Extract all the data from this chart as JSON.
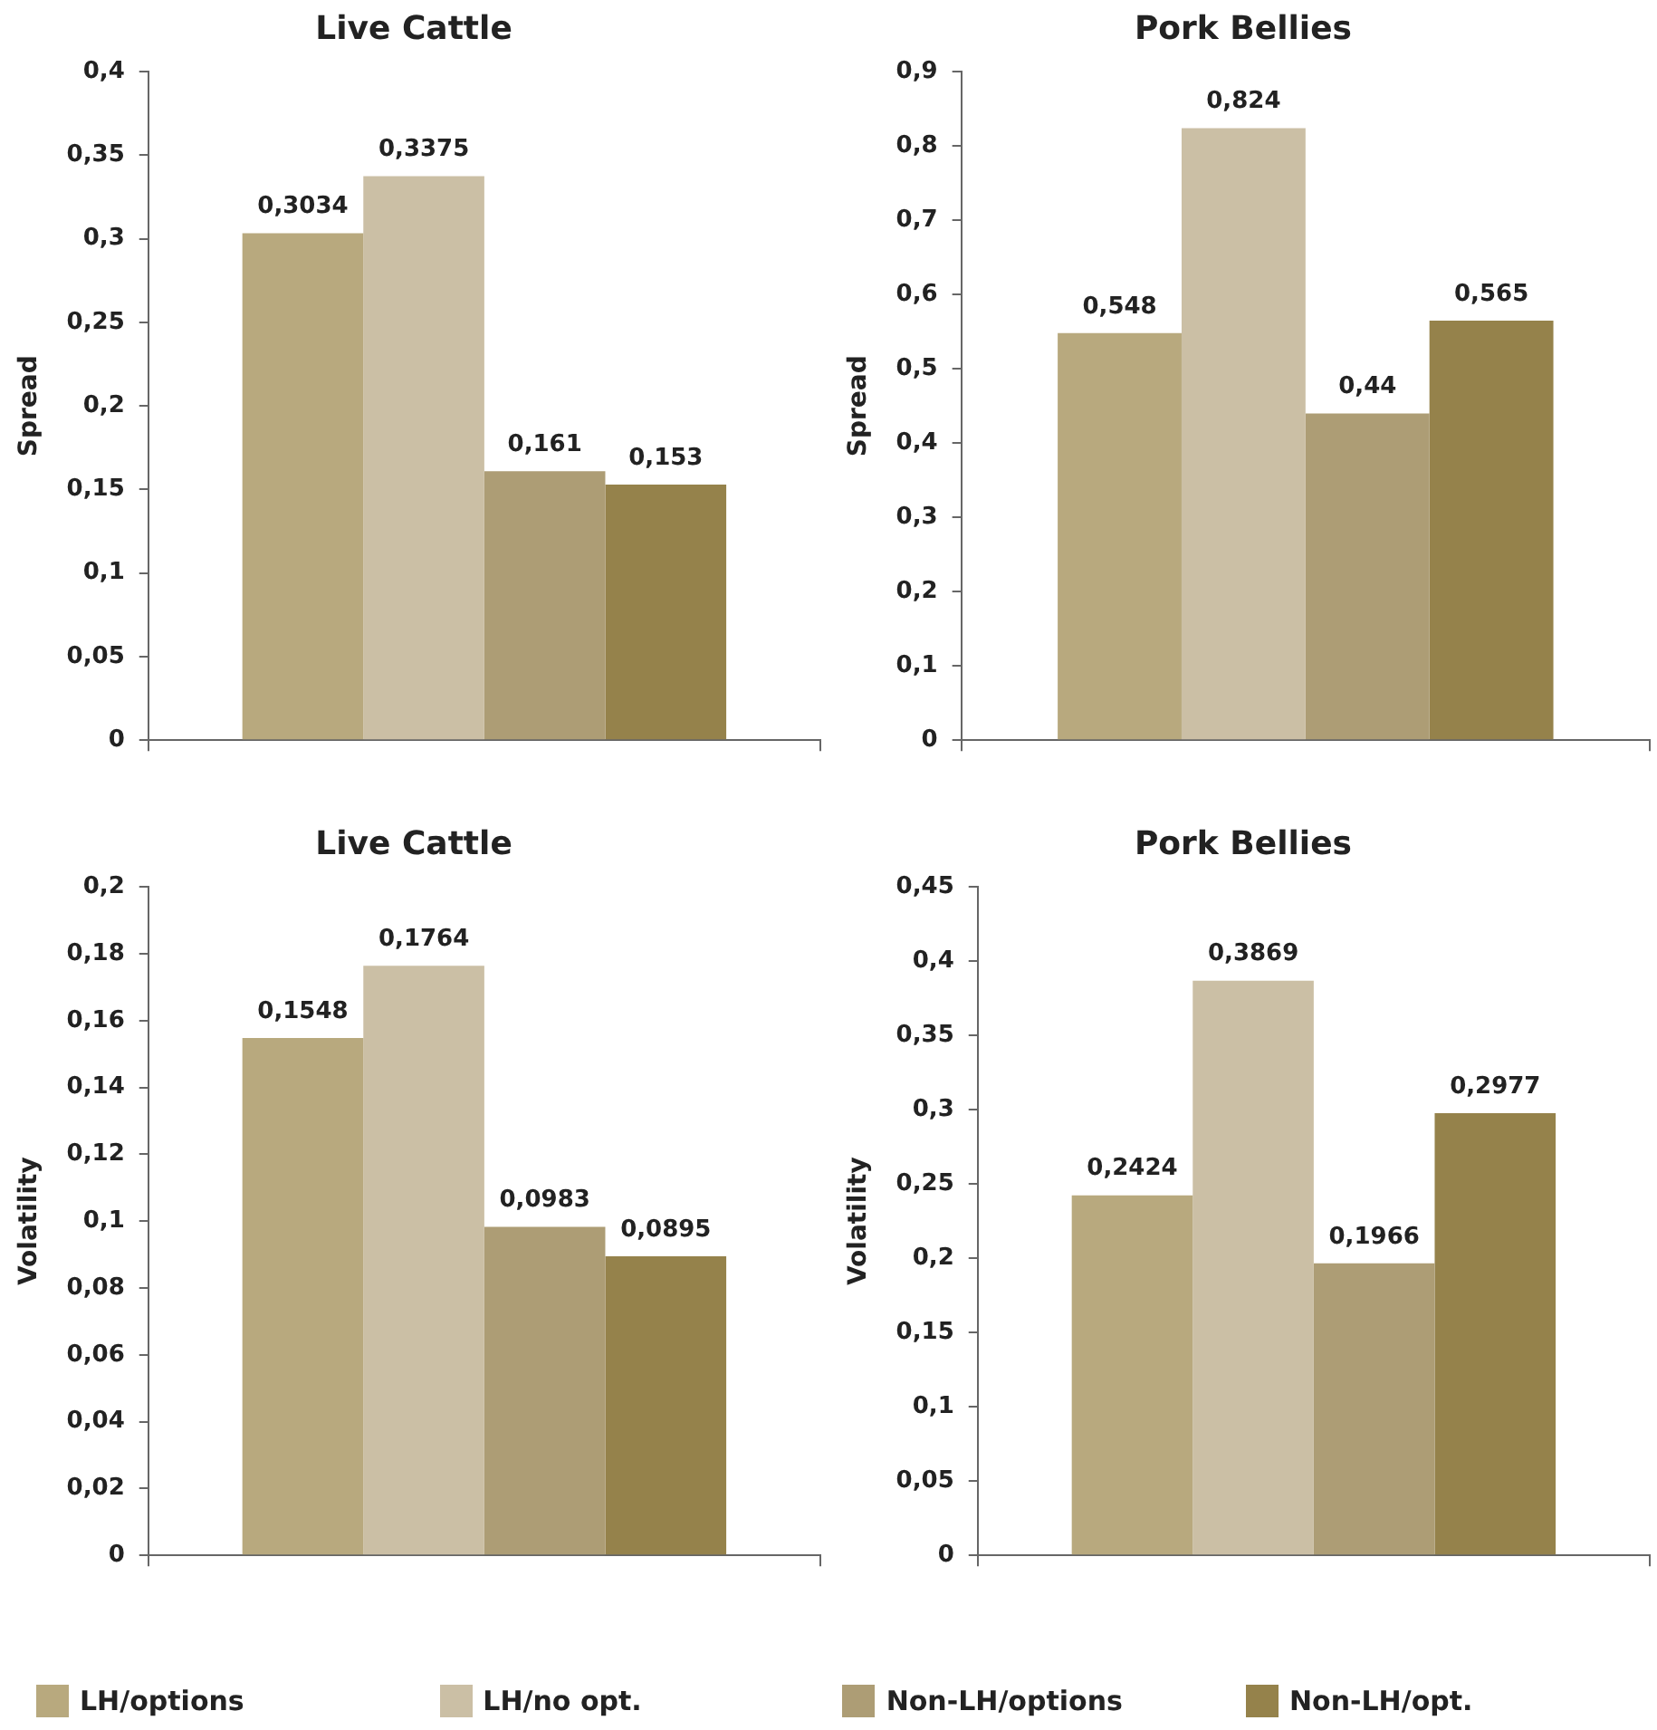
{
  "chart_data": [
    {
      "type": "bar",
      "title": "Live Cattle",
      "ylabel": "Spread",
      "categories": [
        null
      ],
      "ylim": [
        0,
        0.4
      ],
      "yticks": [
        {
          "value": 0,
          "label": "0"
        },
        {
          "value": 0.05,
          "label": "0,05"
        },
        {
          "value": 0.1,
          "label": "0,1"
        },
        {
          "value": 0.15,
          "label": "0,15"
        },
        {
          "value": 0.2,
          "label": "0,2"
        },
        {
          "value": 0.25,
          "label": "0,25"
        },
        {
          "value": 0.3,
          "label": "0,3"
        },
        {
          "value": 0.35,
          "label": "0,35"
        },
        {
          "value": 0.4,
          "label": "0,4"
        }
      ],
      "grid": false,
      "legend": "bottom",
      "series": [
        {
          "name": "LH/options",
          "color": "#b8a97e",
          "values": [
            0.3034
          ],
          "value_labels": [
            "0,3034"
          ]
        },
        {
          "name": "LH/no opt.",
          "color": "#cbbfa5",
          "values": [
            0.3375
          ],
          "value_labels": [
            "0,3375"
          ]
        },
        {
          "name": "Non-LH/options",
          "color": "#ad9d75",
          "values": [
            0.161
          ],
          "value_labels": [
            "0,161"
          ]
        },
        {
          "name": "Non-LH/opt.",
          "color": "#95824b",
          "values": [
            0.153
          ],
          "value_labels": [
            "0,153"
          ]
        }
      ]
    },
    {
      "type": "bar",
      "title": "Pork Bellies",
      "ylabel": "Spread",
      "categories": [
        null
      ],
      "ylim": [
        0,
        0.9
      ],
      "yticks": [
        {
          "value": 0,
          "label": "0"
        },
        {
          "value": 0.1,
          "label": "0,1"
        },
        {
          "value": 0.2,
          "label": "0,2"
        },
        {
          "value": 0.3,
          "label": "0,3"
        },
        {
          "value": 0.4,
          "label": "0,4"
        },
        {
          "value": 0.5,
          "label": "0,5"
        },
        {
          "value": 0.6,
          "label": "0,6"
        },
        {
          "value": 0.7,
          "label": "0,7"
        },
        {
          "value": 0.8,
          "label": "0,8"
        },
        {
          "value": 0.9,
          "label": "0,9"
        }
      ],
      "grid": false,
      "series": [
        {
          "color": "#b8a97e",
          "values": [
            0.548
          ],
          "value_labels": [
            "0,548"
          ]
        },
        {
          "color": "#cbbfa5",
          "values": [
            0.824
          ],
          "value_labels": [
            "0,824"
          ]
        },
        {
          "color": "#ad9d75",
          "values": [
            0.44
          ],
          "value_labels": [
            "0,44"
          ]
        },
        {
          "color": "#95824b",
          "values": [
            0.565
          ],
          "value_labels": [
            "0,565"
          ]
        }
      ]
    },
    {
      "type": "bar",
      "title": "Live Cattle",
      "ylabel": "Volatility",
      "categories": [
        null
      ],
      "ylim": [
        0,
        0.2
      ],
      "yticks": [
        {
          "value": 0,
          "label": "0"
        },
        {
          "value": 0.02,
          "label": "0,02"
        },
        {
          "value": 0.04,
          "label": "0,04"
        },
        {
          "value": 0.06,
          "label": "0,06"
        },
        {
          "value": 0.08,
          "label": "0,08"
        },
        {
          "value": 0.1,
          "label": "0,1"
        },
        {
          "value": 0.12,
          "label": "0,12"
        },
        {
          "value": 0.14,
          "label": "0,14"
        },
        {
          "value": 0.16,
          "label": "0,16"
        },
        {
          "value": 0.18,
          "label": "0,18"
        },
        {
          "value": 0.2,
          "label": "0,2"
        }
      ],
      "grid": false,
      "series": [
        {
          "color": "#b8a97e",
          "values": [
            0.1548
          ],
          "value_labels": [
            "0,1548"
          ]
        },
        {
          "color": "#cbbfa5",
          "values": [
            0.1764
          ],
          "value_labels": [
            "0,1764"
          ]
        },
        {
          "color": "#ad9d75",
          "values": [
            0.0983
          ],
          "value_labels": [
            "0,0983"
          ]
        },
        {
          "color": "#95824b",
          "values": [
            0.0895
          ],
          "value_labels": [
            "0,0895"
          ]
        }
      ]
    },
    {
      "type": "bar",
      "title": "Pork Bellies",
      "ylabel": "Volatility",
      "categories": [
        null
      ],
      "ylim": [
        0,
        0.45
      ],
      "yticks": [
        {
          "value": 0,
          "label": "0"
        },
        {
          "value": 0.05,
          "label": "0,05"
        },
        {
          "value": 0.1,
          "label": "0,1"
        },
        {
          "value": 0.15,
          "label": "0,15"
        },
        {
          "value": 0.2,
          "label": "0,2"
        },
        {
          "value": 0.25,
          "label": "0,25"
        },
        {
          "value": 0.3,
          "label": "0,3"
        },
        {
          "value": 0.35,
          "label": "0,35"
        },
        {
          "value": 0.4,
          "label": "0,4"
        },
        {
          "value": 0.45,
          "label": "0,45"
        }
      ],
      "grid": false,
      "series": [
        {
          "color": "#b8a97e",
          "values": [
            0.2424
          ],
          "value_labels": [
            "0,2424"
          ]
        },
        {
          "color": "#cbbfa5",
          "values": [
            0.3869
          ],
          "value_labels": [
            "0,3869"
          ]
        },
        {
          "color": "#ad9d75",
          "values": [
            0.1966
          ],
          "value_labels": [
            "0,1966"
          ]
        },
        {
          "color": "#95824b",
          "values": [
            0.2977
          ],
          "value_labels": [
            "0,2977"
          ]
        }
      ]
    }
  ]
}
